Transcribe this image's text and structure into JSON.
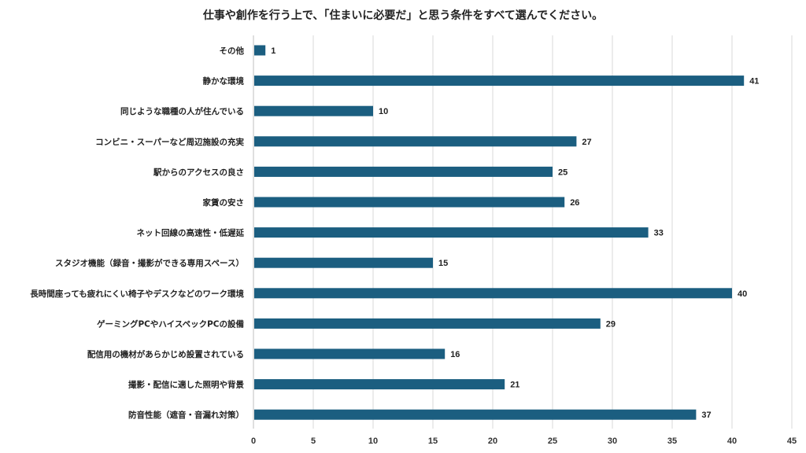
{
  "chart_data": {
    "type": "bar",
    "orientation": "horizontal",
    "title": "仕事や創作を行う上で、「住まいに必要だ」と思う条件をすべて選んでください。",
    "categories": [
      "その他",
      "静かな環境",
      "同じような職種の人が住んでいる",
      "コンビニ・スーパーなど周辺施設の充実",
      "駅からのアクセスの良さ",
      "家賃の安さ",
      "ネット回線の高速性・低遅延",
      "スタジオ機能（録音・撮影ができる専用スペース）",
      "長時間座っても疲れにくい椅子やデスクなどのワーク環境",
      "ゲーミングPCやハイスペックPCの設備",
      "配信用の機材があらかじめ設置されている",
      "撮影・配信に適した照明や背景",
      "防音性能（遮音・音漏れ対策）"
    ],
    "values": [
      1,
      41,
      10,
      27,
      25,
      26,
      33,
      15,
      40,
      29,
      16,
      21,
      37
    ],
    "xlim": [
      0,
      45
    ],
    "xticks": [
      0,
      5,
      10,
      15,
      20,
      25,
      30,
      35,
      40,
      45
    ],
    "xlabel": "",
    "ylabel": "",
    "grid": true,
    "legend": "none",
    "data_labels": true,
    "bar_color": "#1b5e80"
  }
}
